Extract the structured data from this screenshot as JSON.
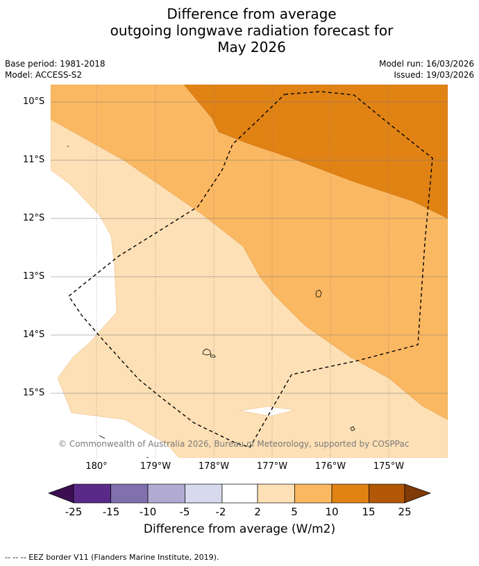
{
  "title": {
    "line1": "Difference from average",
    "line2": "outgoing longwave radiation forecast for",
    "line3": "May 2026"
  },
  "meta": {
    "base_period": "Base period: 1981-2018",
    "model": "Model: ACCESS-S2",
    "model_run": "Model run: 16/03/2026",
    "issued": "Issued: 19/03/2026"
  },
  "axes": {
    "lat_labels": [
      "10°S",
      "11°S",
      "12°S",
      "13°S",
      "14°S",
      "15°S"
    ],
    "lon_labels": [
      "180°",
      "179°W",
      "178°W",
      "177°W",
      "176°W",
      "175°W"
    ]
  },
  "copyright": "© Commonwealth of Australia 2026, Bureau of Meteorology, supported by COSPPac",
  "colorbar": {
    "ticks": [
      "-25",
      "-15",
      "-10",
      "-5",
      "-2",
      "2",
      "5",
      "10",
      "15",
      "25"
    ],
    "colors": {
      "below_-25": "#3b0f52",
      "-25_-15": "#5a2a88",
      "-15_-10": "#8070ad",
      "-10_-5": "#b1aad2",
      "-5_-2": "#d7d9ec",
      "-2_2": "#ffffff",
      "2_5": "#fde0b5",
      "5_10": "#fbb862",
      "10_15": "#e08214",
      "15_25": "#b35806",
      "above_25": "#7f3b08"
    },
    "label": "Difference from average (W/m2)"
  },
  "legend_footer": "--  --  -- EEZ border V11 (Flanders Marine Institute, 2019)."
}
